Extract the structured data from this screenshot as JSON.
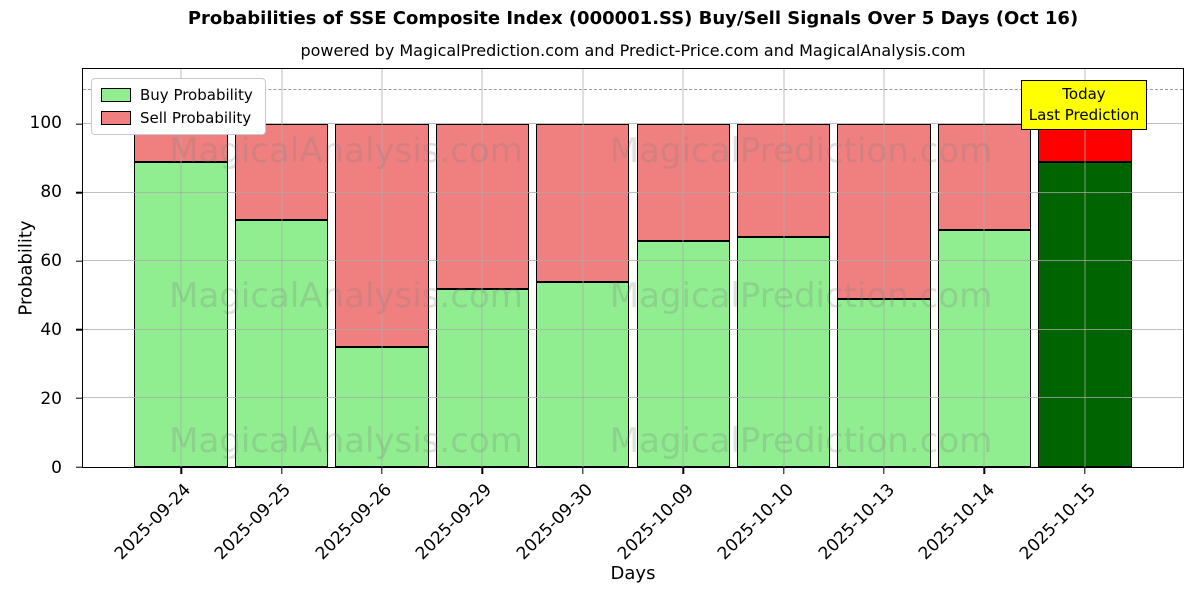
{
  "title": "Probabilities of SSE Composite Index (000001.SS) Buy/Sell Signals Over 5 Days (Oct 16)",
  "subtitle": "powered by MagicalPrediction.com and Predict-Price.com and MagicalAnalysis.com",
  "legend": {
    "buy_label": "Buy Probability",
    "sell_label": "Sell Probability"
  },
  "annotation": {
    "line1": "Today",
    "line2": "Last Prediction",
    "bg_color": "#ffff00"
  },
  "watermarks": {
    "texts": [
      "MagicalAnalysis.com",
      "MagicalPrediction.com"
    ]
  },
  "chart_data": {
    "type": "bar",
    "stacked": true,
    "title": "Probabilities of SSE Composite Index (000001.SS) Buy/Sell Signals Over 5 Days (Oct 16)",
    "xlabel": "Days",
    "ylabel": "Probability",
    "categories": [
      "2025-09-24",
      "2025-09-25",
      "2025-09-26",
      "2025-09-29",
      "2025-09-30",
      "2025-10-09",
      "2025-10-10",
      "2025-10-13",
      "2025-10-14",
      "2025-10-15"
    ],
    "series": [
      {
        "name": "Buy Probability",
        "color": "#90EE90",
        "values": [
          89,
          72,
          35,
          52,
          54,
          66,
          67,
          49,
          69,
          89
        ]
      },
      {
        "name": "Sell Probability",
        "color": "#F08080",
        "values": [
          11,
          28,
          65,
          48,
          46,
          34,
          33,
          51,
          31,
          11
        ]
      }
    ],
    "today_index": 9,
    "today_colors": {
      "buy": "#006400",
      "sell": "#FF0000"
    },
    "ylim": [
      0,
      116
    ],
    "yticks": [
      0,
      20,
      40,
      60,
      80,
      100
    ],
    "dashed_line_y": 110,
    "grid": true,
    "legend_position": "upper-left",
    "bar_edge_color": "#000000"
  }
}
